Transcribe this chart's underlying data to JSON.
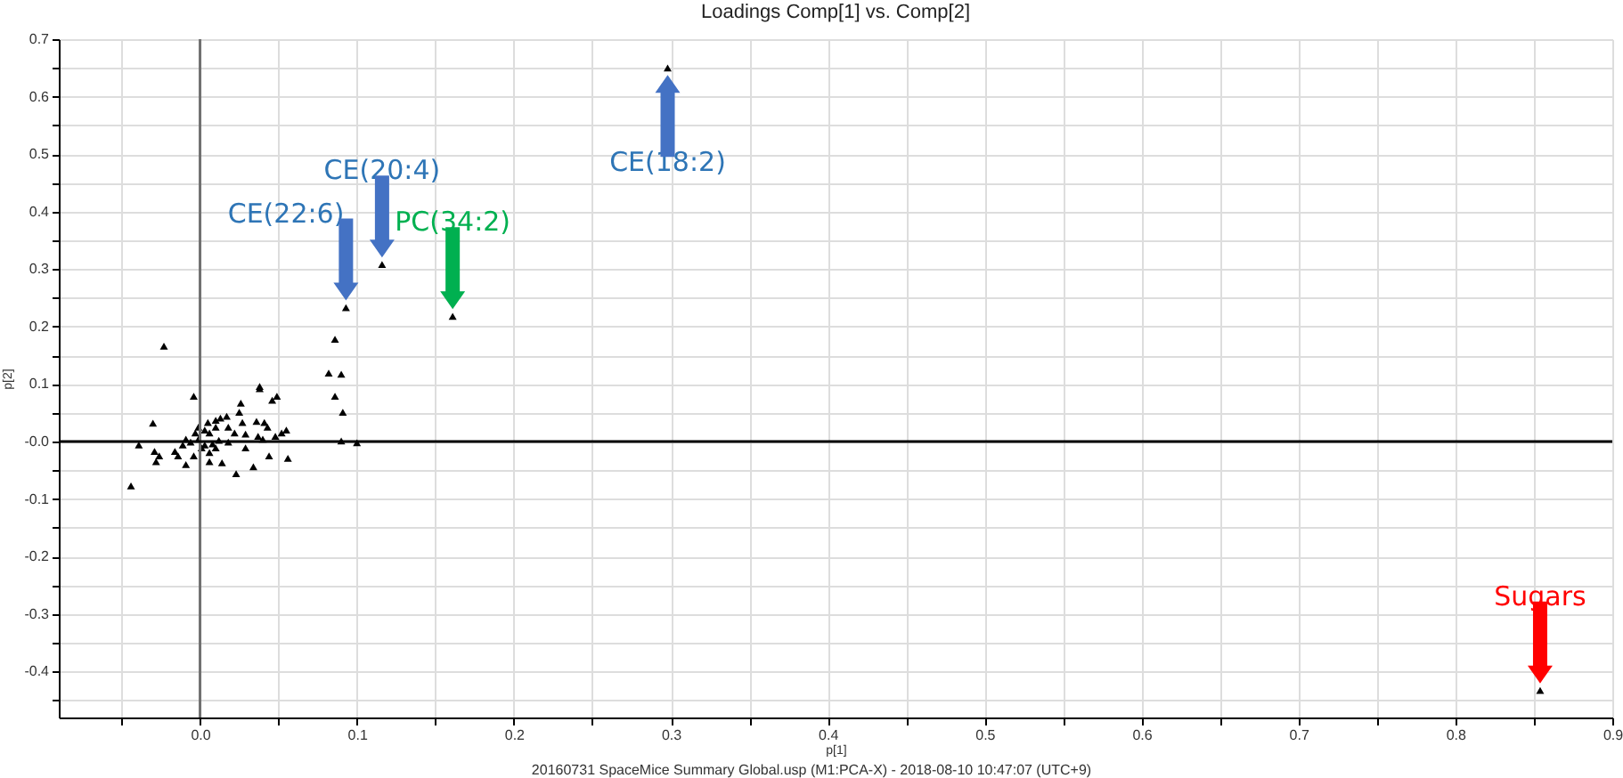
{
  "chart_data": {
    "type": "scatter",
    "title": "Loadings Comp[1] vs. Comp[2]",
    "xlabel": "p[1]",
    "ylabel": "p[2]",
    "xlim": [
      -0.09,
      0.9
    ],
    "ylim": [
      -0.48,
      0.7
    ],
    "xticks": [
      {
        "value": -0.05,
        "label": null
      },
      {
        "value": 0,
        "label": "0.0"
      },
      {
        "value": 0.05,
        "label": null
      },
      0.1,
      {
        "value": 0.15,
        "label": null
      },
      0.2,
      {
        "value": 0.25,
        "label": null
      },
      0.3,
      {
        "value": 0.35,
        "label": null
      },
      0.4,
      {
        "value": 0.45,
        "label": null
      },
      0.5,
      {
        "value": 0.55,
        "label": null
      },
      0.6,
      {
        "value": 0.65,
        "label": null
      },
      0.7,
      {
        "value": 0.75,
        "label": null
      },
      0.8,
      {
        "value": 0.85,
        "label": null
      },
      0.9
    ],
    "yticks": [
      {
        "value": -0.45,
        "label": null
      },
      -0.4,
      {
        "value": -0.35,
        "label": null
      },
      -0.3,
      {
        "value": -0.25,
        "label": null
      },
      -0.2,
      {
        "value": -0.15,
        "label": null
      },
      -0.1,
      {
        "value": -0.05,
        "label": null
      },
      {
        "value": 0,
        "label": "-0.0"
      },
      {
        "value": 0.05,
        "label": null
      },
      0.1,
      {
        "value": 0.15,
        "label": null
      },
      0.2,
      {
        "value": 0.25,
        "label": null
      },
      0.3,
      {
        "value": 0.35,
        "label": null
      },
      0.4,
      {
        "value": 0.45,
        "label": null
      },
      0.5,
      {
        "value": 0.55,
        "label": null
      },
      0.6,
      {
        "value": 0.65,
        "label": null
      },
      0.7
    ],
    "grid": true,
    "marker": "triangle",
    "series": [
      {
        "color": "#000000",
        "x": [
          -0.023,
          -0.004,
          -0.03,
          -0.039,
          -0.044,
          -0.029,
          -0.026,
          -0.028,
          -0.016,
          -0.014,
          -0.009,
          -0.004,
          0.006,
          0.014,
          0.023,
          0.029,
          0.034,
          0.044,
          0.056,
          0.026,
          0.038,
          0.038,
          0.046,
          0.049,
          0.055,
          0.052,
          0.048,
          0.04,
          0.037,
          0.041,
          0.043,
          0.036,
          0.027,
          0.025,
          0.017,
          0.013,
          0.022,
          0.029,
          0.018,
          0.01,
          0.006,
          0.003,
          -0.003,
          -0.001,
          -0.006,
          -0.009,
          -0.011,
          0.003,
          0.008,
          0.012,
          0.018,
          0.001,
          0.006,
          0.01,
          -0.001,
          0.005,
          0.01,
          0.093,
          0.086,
          0.082,
          0.09,
          0.086,
          0.091,
          0.09,
          0.1,
          0.161,
          0.116,
          0.298,
          0.854
        ],
        "values": [
          0.166,
          0.079,
          0.032,
          -0.006,
          -0.077,
          -0.017,
          -0.025,
          -0.035,
          -0.017,
          -0.025,
          -0.04,
          -0.025,
          -0.035,
          -0.037,
          -0.056,
          -0.011,
          -0.044,
          -0.025,
          -0.029,
          0.067,
          0.096,
          0.092,
          0.072,
          0.079,
          0.02,
          0.015,
          0.009,
          0.004,
          0.009,
          0.033,
          0.025,
          0.035,
          0.033,
          0.051,
          0.044,
          0.041,
          0.015,
          0.013,
          0.025,
          0.025,
          0.015,
          0.02,
          0.015,
          0.004,
          -0.001,
          0.004,
          -0.006,
          -0.006,
          -0.004,
          0.002,
          -0.001,
          -0.011,
          -0.019,
          -0.011,
          0.025,
          0.033,
          0.037,
          0.233,
          0.178,
          0.119,
          0.117,
          0.079,
          0.051,
          0.001,
          -0.002,
          0.218,
          0.308,
          0.65,
          -0.433
        ]
      }
    ],
    "ref_lines": [
      {
        "axis": "x",
        "value": 0,
        "color": "#707070"
      },
      {
        "axis": "y",
        "value": 0,
        "color": "#000000"
      }
    ],
    "annotations": [
      {
        "text": "CE(22:6)",
        "x": 0.093,
        "y": 0.233
      },
      {
        "text": "CE(20:4)",
        "x": 0.116,
        "y": 0.308
      },
      {
        "text": "PC(34:2)",
        "x": 0.161,
        "y": 0.218
      },
      {
        "text": "CE(18:2)",
        "x": 0.298,
        "y": 0.65
      },
      {
        "text": "Sugars",
        "x": 0.854,
        "y": -0.433
      },
      "20160731 SpaceMice Summary Global.usp (M1:PCA-X) - 2018-08-10 10:47:07 (UTC+9)"
    ]
  }
}
